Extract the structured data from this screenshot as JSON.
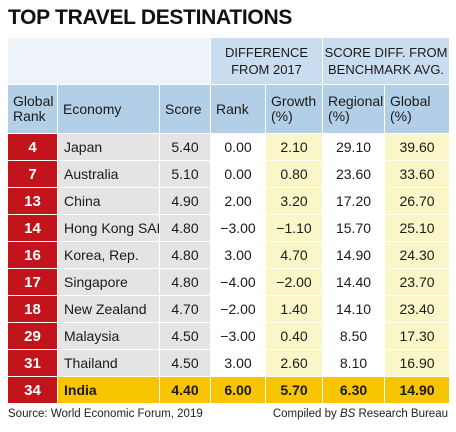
{
  "title": "TOP TRAVEL DESTINATIONS",
  "group_headers": {
    "difference": "DIFFERENCE\nFROM 2017",
    "score_diff": "SCORE DIFF. FROM\nBENCHMARK AVG."
  },
  "columns": {
    "global_rank": "Global\nRank",
    "economy": "Economy",
    "score": "Score",
    "rank": "Rank",
    "growth": "Growth\n(%)",
    "regional": "Regional\n(%)",
    "global": "Global\n(%)"
  },
  "rows": [
    {
      "rank": "4",
      "economy": "Japan",
      "score": "5.40",
      "rank_diff": "0.00",
      "growth": "2.10",
      "regional": "29.10",
      "global": "39.60"
    },
    {
      "rank": "7",
      "economy": "Australia",
      "score": "5.10",
      "rank_diff": "0.00",
      "growth": "0.80",
      "regional": "23.60",
      "global": "33.60"
    },
    {
      "rank": "13",
      "economy": "China",
      "score": "4.90",
      "rank_diff": "2.00",
      "growth": "3.20",
      "regional": "17.20",
      "global": "26.70"
    },
    {
      "rank": "14",
      "economy": "Hong Kong SAR",
      "score": "4.80",
      "rank_diff": "−3.00",
      "growth": "−1.10",
      "regional": "15.70",
      "global": "25.10"
    },
    {
      "rank": "16",
      "economy": "Korea, Rep.",
      "score": "4.80",
      "rank_diff": "3.00",
      "growth": "4.70",
      "regional": "14.90",
      "global": "24.30"
    },
    {
      "rank": "17",
      "economy": "Singapore",
      "score": "4.80",
      "rank_diff": "−4.00",
      "growth": "−2.00",
      "regional": "14.40",
      "global": "23.70"
    },
    {
      "rank": "18",
      "economy": "New Zealand",
      "score": "4.70",
      "rank_diff": "−2.00",
      "growth": "1.40",
      "regional": "14.10",
      "global": "23.40"
    },
    {
      "rank": "29",
      "economy": "Malaysia",
      "score": "4.50",
      "rank_diff": "−3.00",
      "growth": "0.40",
      "regional": "8.50",
      "global": "17.30"
    },
    {
      "rank": "31",
      "economy": "Thailand",
      "score": "4.50",
      "rank_diff": "3.00",
      "growth": "2.60",
      "regional": "8.10",
      "global": "16.90"
    },
    {
      "rank": "34",
      "economy": "India",
      "score": "4.40",
      "rank_diff": "6.00",
      "growth": "5.70",
      "regional": "6.30",
      "global": "14.90",
      "highlight": true
    }
  ],
  "footer": {
    "source": "Source: World Economic Forum, 2019",
    "credit_prefix": "Compiled by ",
    "credit_brand": "BS",
    "credit_suffix": " Research Bureau"
  },
  "colors": {
    "rank_red": "#c4141b",
    "header_blue": "#b3cfe8",
    "highlight_yellow": "#f7c400",
    "pale_yellow": "#fbf6c8",
    "gray": "#e4e4e4"
  }
}
